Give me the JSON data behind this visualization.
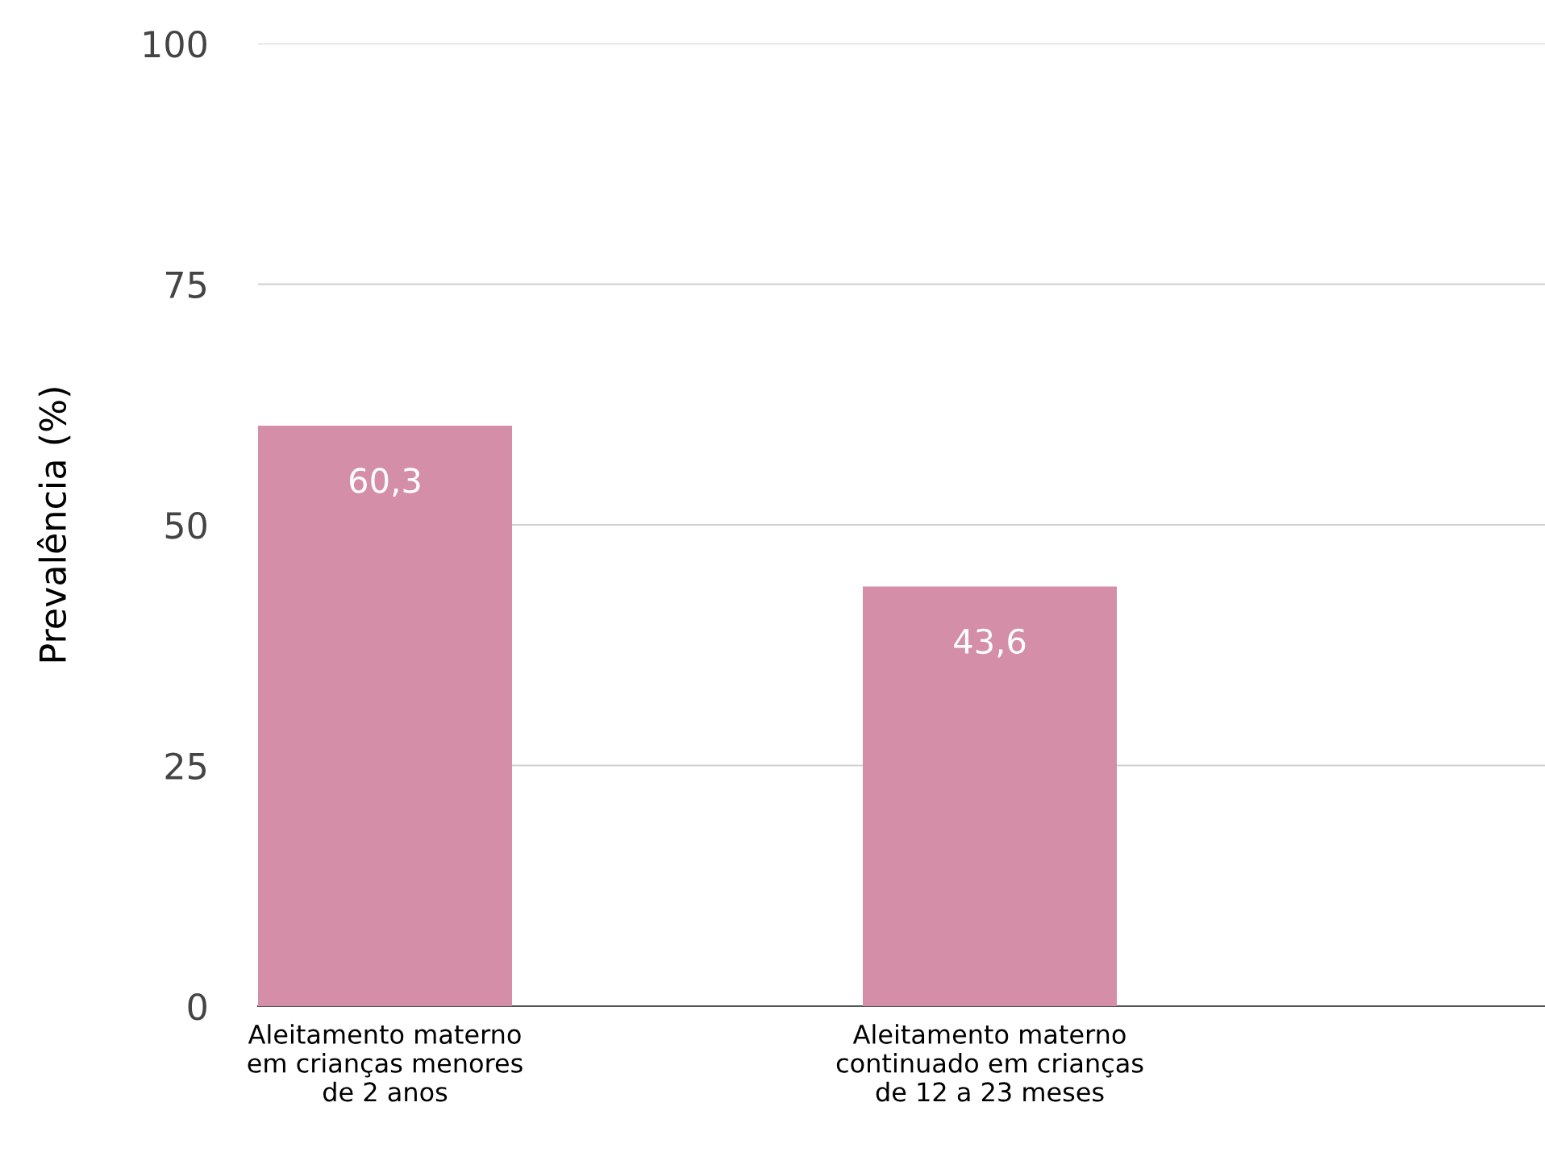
{
  "chart_data": {
    "type": "bar",
    "ylabel": "Prevalência (%)",
    "categories": [
      "Aleitamento materno\nem crianças menores\nde 2 anos",
      "Aleitamento materno\ncontinuado em crianças\nde 12 a 23 meses"
    ],
    "values": [
      60.3,
      43.6
    ],
    "value_labels": [
      "60,3",
      "43,6"
    ],
    "color": "#d48ea8",
    "ylim": [
      0,
      100
    ],
    "yticks": [
      0,
      25,
      50,
      75,
      100
    ],
    "grid": "y"
  }
}
